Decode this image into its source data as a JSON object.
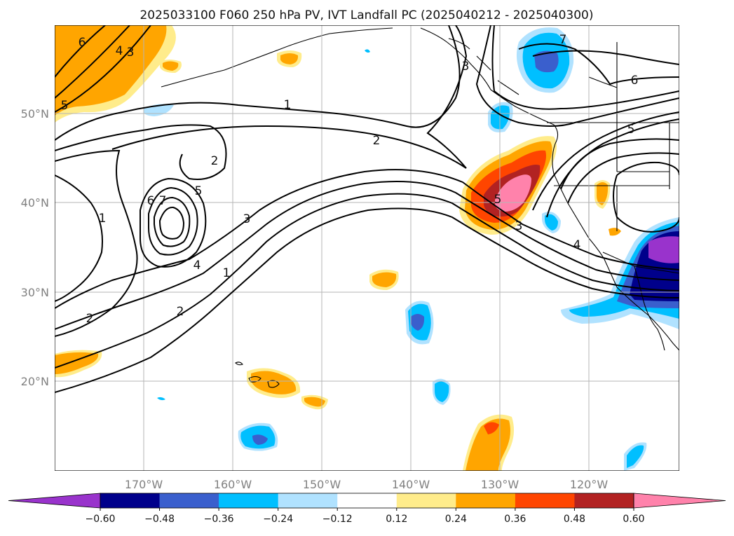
{
  "title": "2025033100 F060 250 hPa PV, IVT Landfall PC (2025040212 - 2025040300)",
  "lat_labels": [
    "50°N",
    "40°N",
    "30°N",
    "20°N"
  ],
  "lon_labels": [
    "170°W",
    "160°W",
    "150°W",
    "140°W",
    "130°W",
    "120°W"
  ],
  "colorbar": {
    "ticks": [
      "−0.60",
      "−0.48",
      "−0.36",
      "−0.24",
      "−0.12",
      "0.12",
      "0.24",
      "0.36",
      "0.48",
      "0.60"
    ],
    "colors": [
      "#9933cc",
      "#00008b",
      "#3a5fcd",
      "#00bfff",
      "#b0e2ff",
      "#ffffff",
      "#ffec8b",
      "#ffa500",
      "#ff4500",
      "#b22222",
      "#ff82ab"
    ]
  },
  "contour_labels": [
    "6",
    "4",
    "3",
    "5",
    "1",
    "2",
    "2",
    "6",
    "7",
    "5",
    "1",
    "3",
    "4",
    "1",
    "2",
    "2",
    "3",
    "7",
    "6",
    "5",
    "3",
    "4",
    "5"
  ],
  "palette": {
    "purple": "#9933cc",
    "navy": "#00008b",
    "royal": "#3a5fcd",
    "sky": "#00bfff",
    "pale_blue": "#b0e2ff",
    "pale_yellow": "#ffec8b",
    "orange": "#ffa500",
    "red_orange": "#ff4500",
    "firebrick": "#b22222",
    "pink": "#ff82ab"
  }
}
